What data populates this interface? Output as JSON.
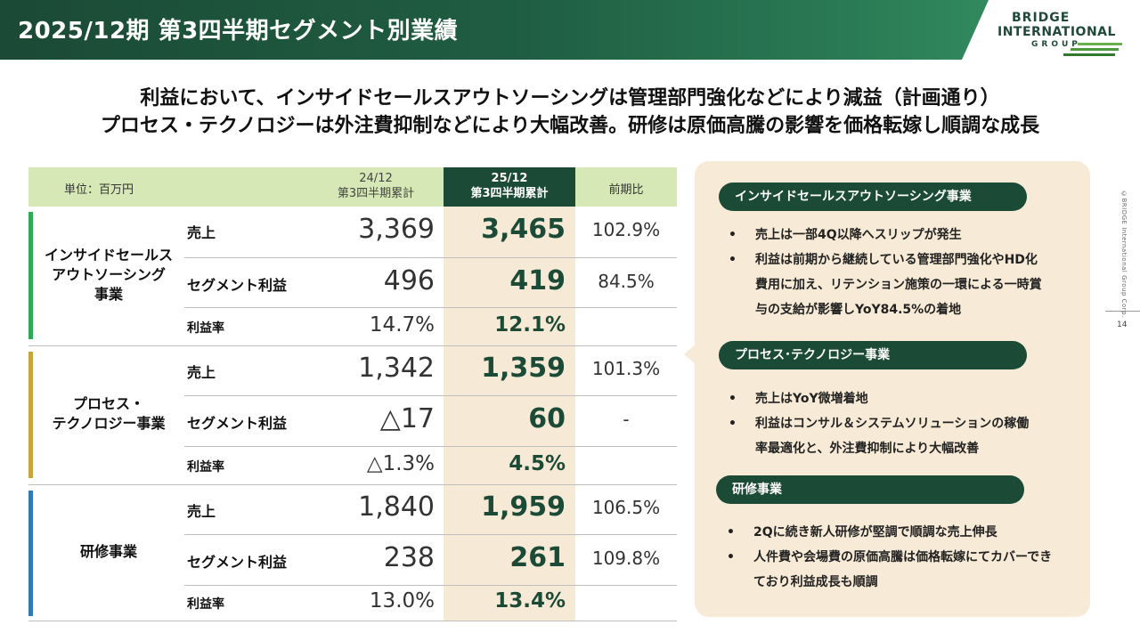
{
  "header": {
    "title": "2025/12期 第3四半期セグメント別業績"
  },
  "logo": {
    "line1": "BRIDGE",
    "line2": "INTERNATIONAL",
    "line3": "GROUP"
  },
  "headline": {
    "line1": "利益において、インサイドセールスアウトソーシングは管理部門強化などにより減益（計画通り）",
    "line2": "プロセス・テクノロジーは外注費抑制などにより大幅改善。研修は原価高騰の影響を価格転嫁し順調な成長"
  },
  "table": {
    "unit": "単位：百万円",
    "col_prev": {
      "line1": "24/12",
      "line2": "第3四半期累計"
    },
    "col_cur": {
      "line1": "25/12",
      "line2": "第3四半期累計"
    },
    "col_yoy": "前期比",
    "segments": [
      {
        "name_lines": [
          "インサイドセールス",
          "アウトソーシング",
          "事業"
        ],
        "color": "#2eaa57",
        "rows": [
          {
            "label": "売上",
            "prev": "3,369",
            "cur": "3,465",
            "yoy": "102.9%"
          },
          {
            "label": "セグメント利益",
            "prev": "496",
            "cur": "419",
            "yoy": "84.5%"
          },
          {
            "label": "利益率",
            "prev": "14.7%",
            "cur": "12.1%",
            "yoy": ""
          }
        ]
      },
      {
        "name_lines": [
          "プロセス・",
          "テクノロジー事業"
        ],
        "color": "#c9a43c",
        "rows": [
          {
            "label": "売上",
            "prev": "1,342",
            "cur": "1,359",
            "yoy": "101.3%"
          },
          {
            "label": "セグメント利益",
            "prev": "△17",
            "cur": "60",
            "yoy": "-"
          },
          {
            "label": "利益率",
            "prev": "△1.3%",
            "cur": "4.5%",
            "yoy": ""
          }
        ]
      },
      {
        "name_lines": [
          "研修事業"
        ],
        "color": "#2e7ab3",
        "rows": [
          {
            "label": "売上",
            "prev": "1,840",
            "cur": "1,959",
            "yoy": "106.5%"
          },
          {
            "label": "セグメント利益",
            "prev": "238",
            "cur": "261",
            "yoy": "109.8%"
          },
          {
            "label": "利益率",
            "prev": "13.0%",
            "cur": "13.4%",
            "yoy": ""
          }
        ]
      }
    ]
  },
  "panel": {
    "sections": [
      {
        "title": "インサイドセールスアウトソーシング事業",
        "bullets": [
          [
            "売上は一部4Q以降へスリップが発生"
          ],
          [
            "利益は前期から継続している管理部門強化やHD化",
            "費用に加え、リテンション施策の一環による一時賞",
            "与の支給が影響しYoY84.5%の着地"
          ]
        ]
      },
      {
        "title": "プロセス･テクノロジー事業",
        "bullets": [
          [
            "売上はYoY微増着地"
          ],
          [
            "利益はコンサル＆システムソリューションの稼働",
            "率最適化と、外注費抑制により大幅改善"
          ]
        ]
      },
      {
        "title": "研修事業",
        "bullets": [
          [
            "2Qに続き新人研修が堅調で順調な売上伸長"
          ],
          [
            "人件費や会場費の原価高騰は価格転嫁にてカバーでき",
            "ており利益成長も順調"
          ]
        ]
      }
    ],
    "bullet_mark": "•"
  },
  "footer": {
    "copyright": "©BRIDGE International Group Corp.",
    "page_number": "14"
  }
}
